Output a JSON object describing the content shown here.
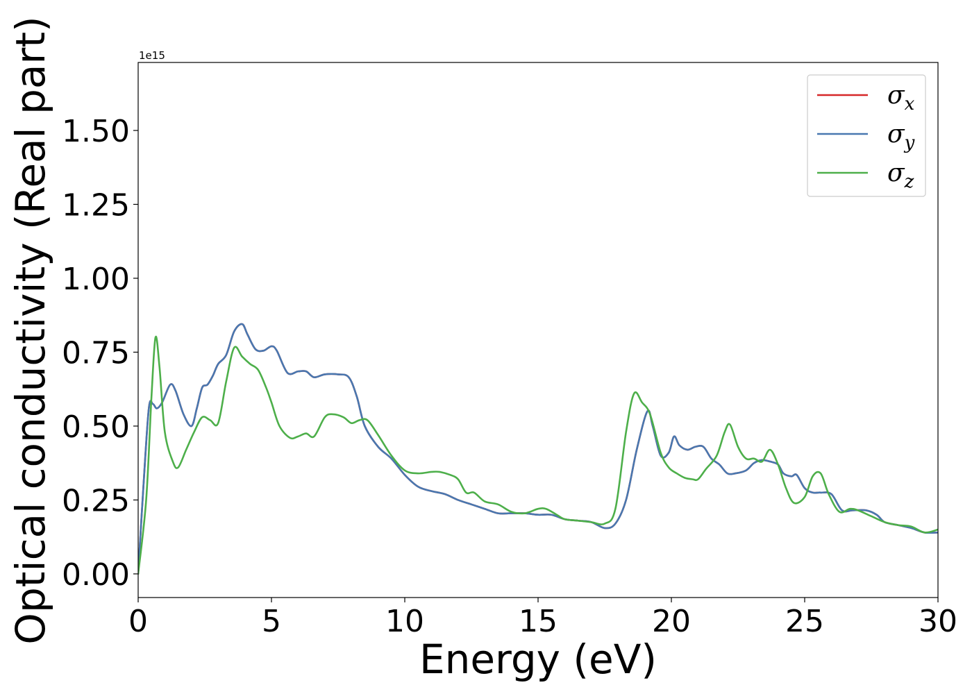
{
  "chart_data": {
    "type": "line",
    "xlabel": "Energy (eV)",
    "ylabel": "Optical conductivity (Real part)",
    "y_offset_text": "1e15",
    "y_scale": 1000000000000000.0,
    "xlim": [
      0,
      30
    ],
    "ylim": [
      -0.08,
      1.73
    ],
    "xticks": [
      0,
      5,
      10,
      15,
      20,
      25,
      30
    ],
    "xtick_labels": [
      "0",
      "5",
      "10",
      "15",
      "20",
      "25",
      "30"
    ],
    "yticks": [
      0.0,
      0.25,
      0.5,
      0.75,
      1.0,
      1.25,
      1.5
    ],
    "ytick_labels": [
      "0.00",
      "0.25",
      "0.50",
      "0.75",
      "1.00",
      "1.25",
      "1.50"
    ],
    "grid": false,
    "legend_position": "top-right",
    "series": [
      {
        "name": "σ_x",
        "legend_symbol": "σ",
        "legend_sub": "x",
        "color": "#d62728",
        "x": [
          0,
          0.2,
          0.4,
          0.55,
          0.7,
          0.9,
          1.2,
          1.4,
          1.7,
          2.0,
          2.2,
          2.4,
          2.6,
          2.8,
          3.0,
          3.3,
          3.6,
          3.9,
          4.1,
          4.4,
          4.7,
          5.0,
          5.2,
          5.6,
          6.0,
          6.3,
          6.6,
          7.0,
          7.5,
          7.9,
          8.2,
          8.5,
          9.0,
          9.5,
          10.0,
          10.5,
          11.0,
          11.5,
          12.0,
          12.5,
          13.0,
          13.5,
          14.0,
          14.5,
          15.0,
          15.5,
          16.0,
          16.5,
          17.0,
          17.5,
          17.9,
          18.3,
          18.7,
          19.1,
          19.3,
          19.6,
          19.9,
          20.1,
          20.3,
          20.6,
          20.9,
          21.2,
          21.5,
          21.8,
          22.1,
          22.4,
          22.8,
          23.1,
          23.4,
          23.7,
          24.0,
          24.2,
          24.5,
          24.7,
          25.0,
          25.3,
          25.6,
          26.0,
          26.4,
          26.8,
          27.3,
          27.7,
          28.0,
          28.5,
          29.0,
          29.5,
          30.0
        ],
        "y": [
          0.0,
          0.3,
          0.56,
          0.575,
          0.56,
          0.58,
          0.64,
          0.62,
          0.54,
          0.5,
          0.56,
          0.63,
          0.64,
          0.67,
          0.71,
          0.74,
          0.82,
          0.845,
          0.81,
          0.76,
          0.755,
          0.77,
          0.755,
          0.68,
          0.685,
          0.685,
          0.665,
          0.675,
          0.675,
          0.665,
          0.6,
          0.5,
          0.43,
          0.39,
          0.335,
          0.295,
          0.28,
          0.27,
          0.25,
          0.235,
          0.22,
          0.205,
          0.205,
          0.205,
          0.2,
          0.2,
          0.185,
          0.18,
          0.175,
          0.155,
          0.17,
          0.25,
          0.42,
          0.55,
          0.5,
          0.4,
          0.41,
          0.465,
          0.435,
          0.42,
          0.43,
          0.43,
          0.39,
          0.37,
          0.34,
          0.34,
          0.35,
          0.375,
          0.385,
          0.38,
          0.37,
          0.34,
          0.33,
          0.335,
          0.29,
          0.275,
          0.275,
          0.27,
          0.215,
          0.215,
          0.215,
          0.2,
          0.175,
          0.165,
          0.155,
          0.14,
          0.14
        ]
      },
      {
        "name": "σ_y",
        "legend_symbol": "σ",
        "legend_sub": "y",
        "color": "#4878b0",
        "x": [
          0,
          0.2,
          0.4,
          0.55,
          0.7,
          0.9,
          1.2,
          1.4,
          1.7,
          2.0,
          2.2,
          2.4,
          2.6,
          2.8,
          3.0,
          3.3,
          3.6,
          3.9,
          4.1,
          4.4,
          4.7,
          5.0,
          5.2,
          5.6,
          6.0,
          6.3,
          6.6,
          7.0,
          7.5,
          7.9,
          8.2,
          8.5,
          9.0,
          9.5,
          10.0,
          10.5,
          11.0,
          11.5,
          12.0,
          12.5,
          13.0,
          13.5,
          14.0,
          14.5,
          15.0,
          15.5,
          16.0,
          16.5,
          17.0,
          17.5,
          17.9,
          18.3,
          18.7,
          19.1,
          19.3,
          19.6,
          19.9,
          20.1,
          20.3,
          20.6,
          20.9,
          21.2,
          21.5,
          21.8,
          22.1,
          22.4,
          22.8,
          23.1,
          23.4,
          23.7,
          24.0,
          24.2,
          24.5,
          24.7,
          25.0,
          25.3,
          25.6,
          26.0,
          26.4,
          26.8,
          27.3,
          27.7,
          28.0,
          28.5,
          29.0,
          29.5,
          30.0
        ],
        "y": [
          0.0,
          0.3,
          0.56,
          0.575,
          0.56,
          0.58,
          0.64,
          0.62,
          0.54,
          0.5,
          0.56,
          0.63,
          0.64,
          0.67,
          0.71,
          0.74,
          0.82,
          0.845,
          0.81,
          0.76,
          0.755,
          0.77,
          0.755,
          0.68,
          0.685,
          0.685,
          0.665,
          0.675,
          0.675,
          0.665,
          0.6,
          0.5,
          0.43,
          0.39,
          0.335,
          0.295,
          0.28,
          0.27,
          0.25,
          0.235,
          0.22,
          0.205,
          0.205,
          0.205,
          0.2,
          0.2,
          0.185,
          0.18,
          0.175,
          0.155,
          0.17,
          0.25,
          0.42,
          0.55,
          0.5,
          0.4,
          0.41,
          0.465,
          0.435,
          0.42,
          0.43,
          0.43,
          0.39,
          0.37,
          0.34,
          0.34,
          0.35,
          0.375,
          0.385,
          0.38,
          0.37,
          0.34,
          0.33,
          0.335,
          0.29,
          0.275,
          0.275,
          0.27,
          0.215,
          0.215,
          0.215,
          0.2,
          0.175,
          0.165,
          0.155,
          0.14,
          0.14
        ]
      },
      {
        "name": "σ_z",
        "legend_symbol": "σ",
        "legend_sub": "z",
        "color": "#4daf4a",
        "x": [
          0,
          0.3,
          0.5,
          0.65,
          0.8,
          1.0,
          1.3,
          1.5,
          1.8,
          2.1,
          2.4,
          2.7,
          3.0,
          3.3,
          3.6,
          3.9,
          4.2,
          4.5,
          4.8,
          5.0,
          5.3,
          5.7,
          6.0,
          6.3,
          6.6,
          7.0,
          7.3,
          7.7,
          8.0,
          8.3,
          8.6,
          9.0,
          9.5,
          10.0,
          10.5,
          11.0,
          11.3,
          11.7,
          12.0,
          12.3,
          12.6,
          13.0,
          13.5,
          14.0,
          14.5,
          15.0,
          15.3,
          15.7,
          16.0,
          16.5,
          17.0,
          17.5,
          17.9,
          18.3,
          18.6,
          18.9,
          19.2,
          19.6,
          19.9,
          20.2,
          20.5,
          20.8,
          21.0,
          21.3,
          21.7,
          22.0,
          22.2,
          22.5,
          22.8,
          23.1,
          23.4,
          23.7,
          24.0,
          24.3,
          24.6,
          25.0,
          25.3,
          25.6,
          25.9,
          26.3,
          26.7,
          27.0,
          27.5,
          28.0,
          28.5,
          29.0,
          29.5,
          30.0
        ],
        "y": [
          0.0,
          0.25,
          0.6,
          0.8,
          0.7,
          0.48,
          0.38,
          0.36,
          0.42,
          0.48,
          0.53,
          0.52,
          0.51,
          0.65,
          0.765,
          0.735,
          0.71,
          0.69,
          0.63,
          0.58,
          0.5,
          0.46,
          0.465,
          0.475,
          0.465,
          0.53,
          0.54,
          0.53,
          0.51,
          0.52,
          0.52,
          0.47,
          0.4,
          0.35,
          0.34,
          0.345,
          0.345,
          0.335,
          0.32,
          0.275,
          0.275,
          0.245,
          0.235,
          0.21,
          0.205,
          0.22,
          0.22,
          0.2,
          0.185,
          0.18,
          0.175,
          0.17,
          0.22,
          0.48,
          0.61,
          0.58,
          0.54,
          0.41,
          0.36,
          0.34,
          0.325,
          0.32,
          0.32,
          0.355,
          0.4,
          0.48,
          0.505,
          0.43,
          0.39,
          0.39,
          0.38,
          0.42,
          0.37,
          0.29,
          0.24,
          0.26,
          0.33,
          0.34,
          0.27,
          0.21,
          0.22,
          0.215,
          0.195,
          0.175,
          0.165,
          0.16,
          0.14,
          0.15
        ]
      }
    ]
  }
}
